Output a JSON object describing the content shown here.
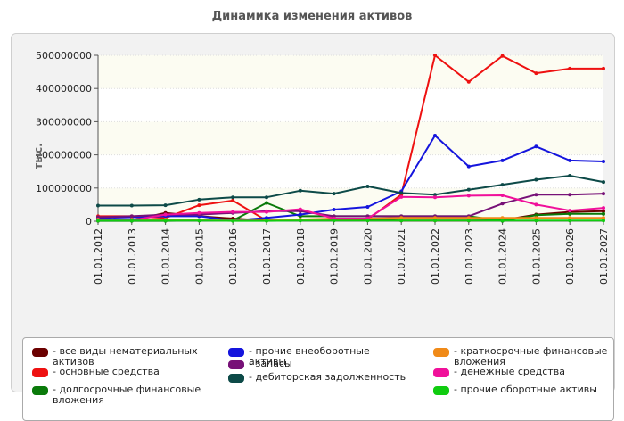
{
  "title": "Динамика изменения активов",
  "chart_data": {
    "type": "line",
    "ylabel": "тыс.",
    "ylim": [
      0,
      500000000
    ],
    "yticks": [
      "500000000",
      "400000000",
      "300000000",
      "200000000",
      "100000000",
      "0"
    ],
    "x": [
      "01.01.2012",
      "01.01.2013",
      "01.01.2014",
      "01.01.2015",
      "01.01.2016",
      "01.01.2017",
      "01.01.2018",
      "01.01.2019",
      "01.01.2020",
      "01.01.2021",
      "01.01.2022",
      "01.01.2023",
      "01.01.2024",
      "01.01.2025",
      "01.01.2026",
      "01.01.2027"
    ],
    "legend_position": "bottom",
    "series": [
      {
        "name": "- все виды нематериальных активов",
        "color": "#6b0000",
        "values": [
          2000000,
          3000000,
          25000000,
          15000000,
          8000000,
          2000000,
          5000000,
          5000000,
          5000000,
          2000000,
          2000000,
          2000000,
          3000000,
          20000000,
          28000000,
          30000000
        ]
      },
      {
        "name": "- основные средства",
        "color": "#ee1111",
        "values": [
          15000000,
          15000000,
          10000000,
          48000000,
          62000000,
          2000000,
          5000000,
          5000000,
          5000000,
          80000000,
          500000000,
          420000000,
          498000000,
          446000000,
          460000000,
          460000000
        ]
      },
      {
        "name": "- долгосрочные финансовые вложения",
        "color": "#0a7a0a",
        "values": [
          1000000,
          1000000,
          1000000,
          2000000,
          2000000,
          55000000,
          15000000,
          15000000,
          15000000,
          15000000,
          15000000,
          15000000,
          1000000,
          18000000,
          22000000,
          22000000
        ]
      },
      {
        "name": "- прочие внеоборотные активы",
        "color": "#1515dd",
        "values": [
          10000000,
          12000000,
          15000000,
          15000000,
          2000000,
          10000000,
          20000000,
          35000000,
          43000000,
          90000000,
          258000000,
          165000000,
          183000000,
          225000000,
          183000000,
          180000000
        ]
      },
      {
        "name": "- запасы",
        "color": "#771177",
        "values": [
          12000000,
          15000000,
          20000000,
          20000000,
          25000000,
          30000000,
          30000000,
          15000000,
          15000000,
          15000000,
          15000000,
          15000000,
          53000000,
          80000000,
          80000000,
          83000000
        ]
      },
      {
        "name": "- дебиторская задолженность",
        "color": "#0d4a48",
        "values": [
          47000000,
          47000000,
          48000000,
          65000000,
          72000000,
          72000000,
          92000000,
          83000000,
          105000000,
          85000000,
          80000000,
          95000000,
          110000000,
          125000000,
          137000000,
          118000000
        ]
      },
      {
        "name": "- краткосрочные финансовые вложения",
        "color": "#f08a18",
        "values": [
          5000000,
          5000000,
          5000000,
          3000000,
          2000000,
          2000000,
          5000000,
          8000000,
          8000000,
          10000000,
          10000000,
          10000000,
          10000000,
          10000000,
          10000000,
          10000000
        ]
      },
      {
        "name": "- денежные средства",
        "color": "#f0109a",
        "values": [
          3000000,
          3000000,
          20000000,
          25000000,
          28000000,
          28000000,
          36000000,
          8000000,
          8000000,
          73000000,
          72000000,
          77000000,
          78000000,
          50000000,
          32000000,
          40000000
        ]
      },
      {
        "name": "- прочие оборотные активы",
        "color": "#10cc10",
        "values": [
          2000000,
          2000000,
          2000000,
          2000000,
          1000000,
          1000000,
          2000000,
          2000000,
          2000000,
          2000000,
          2000000,
          2000000,
          2000000,
          2000000,
          2000000,
          2000000
        ]
      }
    ]
  }
}
